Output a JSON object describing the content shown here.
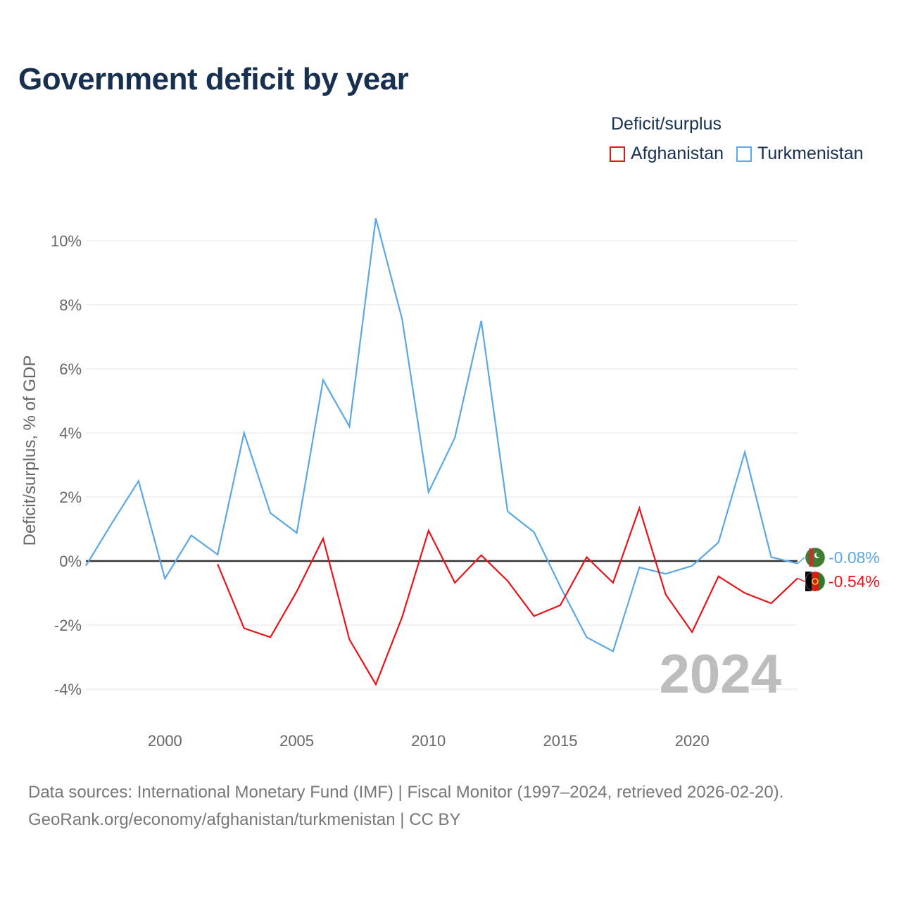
{
  "title": "Government deficit by year",
  "legend": {
    "title": "Deficit/surplus",
    "items": [
      {
        "label": "Afghanistan",
        "color": "#e8141a"
      },
      {
        "label": "Turkmenistan",
        "color": "#5ca8e4"
      }
    ]
  },
  "footer": {
    "line1": "Data sources: International Monetary Fund (IMF) | Fiscal Monitor (1997–2024, retrieved 2026-02-20).",
    "line2": "GeoRank.org/economy/afghanistan/turkmenistan | CC BY"
  },
  "chart_data": {
    "type": "line",
    "title": "Government deficit by year",
    "xlabel": "",
    "ylabel": "Deficit/surplus, % of GDP",
    "xlim": [
      1997,
      2024
    ],
    "ylim": [
      -5,
      11
    ],
    "xticks": [
      2000,
      2005,
      2010,
      2015,
      2020
    ],
    "yticks": [
      -4,
      -2,
      0,
      2,
      4,
      6,
      8,
      10
    ],
    "ytick_labels": [
      "-4%",
      "-2%",
      "0%",
      "2%",
      "4%",
      "6%",
      "8%",
      "10%"
    ],
    "year_label": "2024",
    "series": [
      {
        "name": "Turkmenistan",
        "color": "#5ca8e4",
        "end_label": "-0.08%",
        "x": [
          1997,
          1998,
          1999,
          2000,
          2001,
          2002,
          2003,
          2004,
          2005,
          2006,
          2007,
          2008,
          2009,
          2010,
          2011,
          2012,
          2013,
          2014,
          2015,
          2016,
          2017,
          2018,
          2019,
          2020,
          2021,
          2022,
          2023,
          2024
        ],
        "values": [
          -0.15,
          1.2,
          2.5,
          -0.55,
          0.8,
          0.2,
          4.0,
          1.5,
          0.88,
          5.65,
          4.2,
          10.7,
          7.55,
          2.15,
          3.85,
          7.5,
          1.55,
          0.9,
          -0.8,
          -2.38,
          -2.82,
          -0.2,
          -0.4,
          -0.15,
          0.58,
          3.4,
          0.12,
          -0.08
        ]
      },
      {
        "name": "Afghanistan",
        "color": "#e8141a",
        "end_label": "-0.54%",
        "x": [
          2002,
          2003,
          2004,
          2005,
          2006,
          2007,
          2008,
          2009,
          2010,
          2011,
          2012,
          2013,
          2014,
          2015,
          2016,
          2017,
          2018,
          2019,
          2020,
          2021,
          2022,
          2023,
          2024
        ],
        "values": [
          -0.1,
          -2.1,
          -2.38,
          -0.95,
          0.7,
          -2.45,
          -3.85,
          -1.75,
          0.95,
          -0.68,
          0.18,
          -0.62,
          -1.72,
          -1.38,
          0.12,
          -0.68,
          1.65,
          -1.05,
          -2.22,
          -0.48,
          -1.0,
          -1.32,
          -0.54
        ]
      }
    ]
  }
}
